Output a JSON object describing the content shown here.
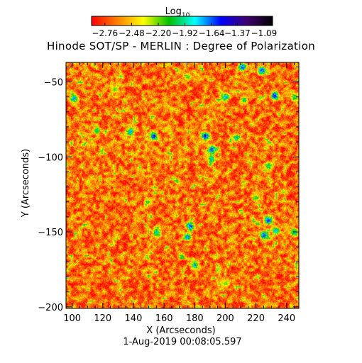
{
  "chart_data": {
    "type": "heatmap",
    "title": "Hinode SOT/SP - MERLIN : Degree of Polarization",
    "xlabel": "X (Arcseconds)",
    "ylabel": "Y (Arcseconds)",
    "footer": "1-Aug-2019 00:08:05.597",
    "xlim": [
      96,
      248
    ],
    "ylim": [
      -201,
      -37
    ],
    "x_ticks": [
      100,
      120,
      140,
      160,
      180,
      200,
      220,
      240
    ],
    "y_ticks": [
      -50,
      -100,
      -150,
      -200
    ],
    "colorbar": {
      "title_main": "Log",
      "title_sub": "10",
      "range": [
        -2.9,
        -1.0
      ],
      "tick_values": [
        -2.76,
        -2.48,
        -2.2,
        -1.92,
        -1.64,
        -1.37,
        -1.09
      ],
      "tick_labels": [
        "−2.76",
        "−2.48",
        "−2.20",
        "−1.92",
        "−1.64",
        "−1.37",
        "−1.09"
      ],
      "colors": [
        "#ff0000",
        "#ff8000",
        "#ffff00",
        "#00c000",
        "#00ffff",
        "#0000ff",
        "#400070",
        "#000000"
      ]
    },
    "background_level": -2.65,
    "features": [
      {
        "x": 116,
        "y": -82,
        "level": -1.75
      },
      {
        "x": 101,
        "y": -61,
        "level": -1.5
      },
      {
        "x": 128,
        "y": -55,
        "level": -2.1
      },
      {
        "x": 138,
        "y": -83,
        "level": -1.55
      },
      {
        "x": 153,
        "y": -86,
        "level": -1.25
      },
      {
        "x": 149,
        "y": -130,
        "level": -2.0
      },
      {
        "x": 155,
        "y": -150,
        "level": -1.6
      },
      {
        "x": 175,
        "y": -46,
        "level": -1.9
      },
      {
        "x": 187,
        "y": -86,
        "level": -1.1
      },
      {
        "x": 191,
        "y": -95,
        "level": -1.3
      },
      {
        "x": 191,
        "y": -101,
        "level": -1.6
      },
      {
        "x": 177,
        "y": -146,
        "level": -1.3
      },
      {
        "x": 175,
        "y": -153,
        "level": -1.5
      },
      {
        "x": 180,
        "y": -172,
        "level": -1.6
      },
      {
        "x": 211,
        "y": -40,
        "level": -1.3
      },
      {
        "x": 200,
        "y": -60,
        "level": -1.5
      },
      {
        "x": 212,
        "y": -62,
        "level": -1.8
      },
      {
        "x": 224,
        "y": -42,
        "level": -1.4
      },
      {
        "x": 232,
        "y": -59,
        "level": -1.2
      },
      {
        "x": 245,
        "y": -60,
        "level": -1.8
      },
      {
        "x": 207,
        "y": -87,
        "level": -1.6
      },
      {
        "x": 228,
        "y": -106,
        "level": -1.7
      },
      {
        "x": 220,
        "y": -127,
        "level": -1.9
      },
      {
        "x": 228,
        "y": -142,
        "level": -1.15
      },
      {
        "x": 225,
        "y": -152,
        "level": -1.3
      },
      {
        "x": 233,
        "y": -149,
        "level": -1.5
      },
      {
        "x": 245,
        "y": -150,
        "level": -1.7
      },
      {
        "x": 200,
        "y": -184,
        "level": -2.1
      }
    ]
  }
}
